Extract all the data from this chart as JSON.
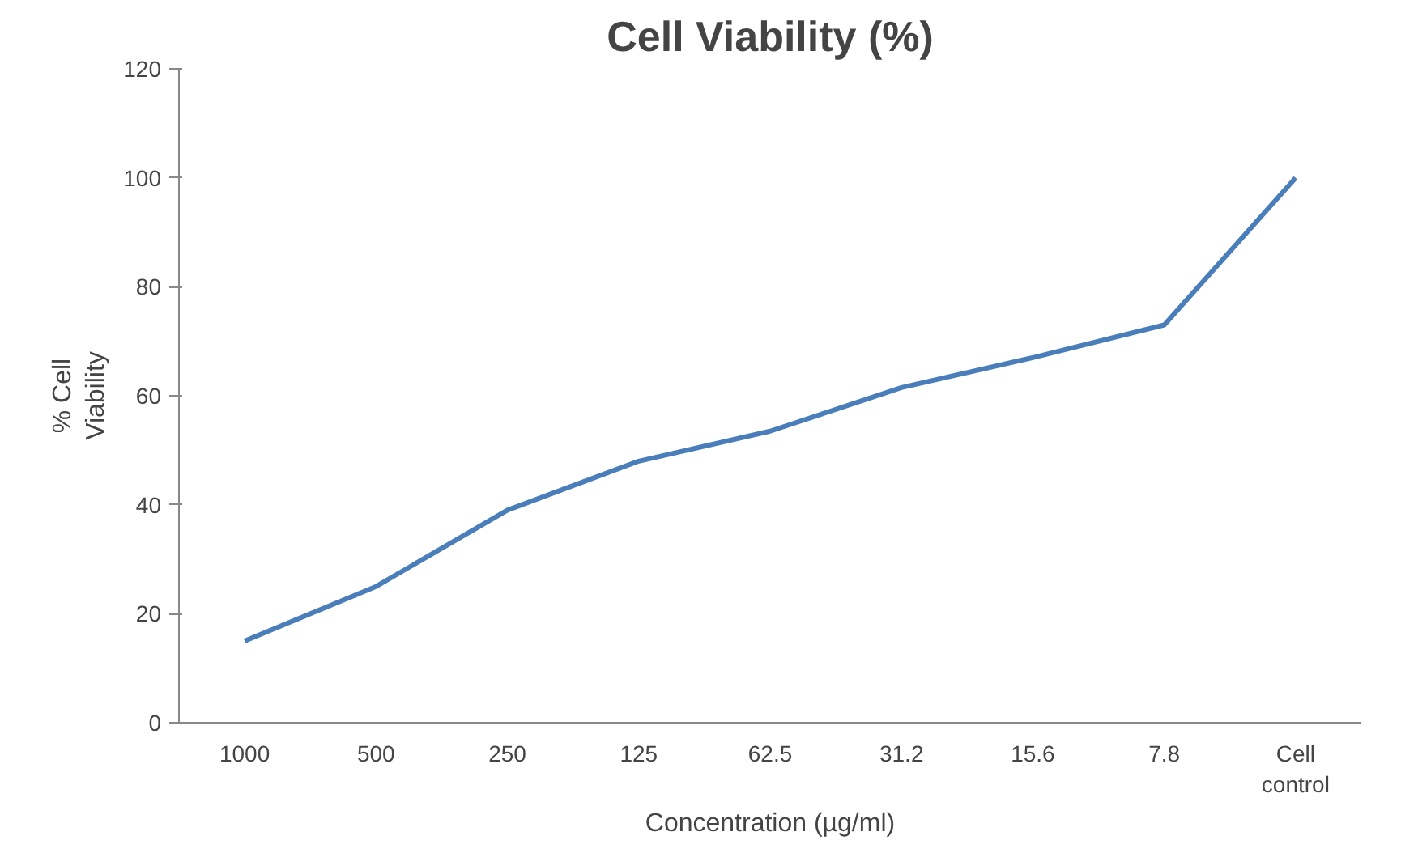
{
  "chart_data": {
    "type": "line",
    "title": "Cell Viability (%)",
    "xlabel": "Concentration (µg/ml)",
    "ylabel": "% Cell Viability",
    "categories": [
      "1000",
      "500",
      "250",
      "125",
      "62.5",
      "31.2",
      "15.6",
      "7.8",
      "Cell control"
    ],
    "series": [
      {
        "color": "#4a7ebb",
        "values": [
          15,
          25,
          39,
          48,
          53.5,
          61.5,
          67,
          73,
          100
        ]
      }
    ],
    "ylim": [
      0,
      120
    ],
    "yticks": [
      0,
      20,
      40,
      60,
      80,
      100,
      120
    ],
    "grid": false,
    "marker": "none",
    "line_style": "solid"
  }
}
